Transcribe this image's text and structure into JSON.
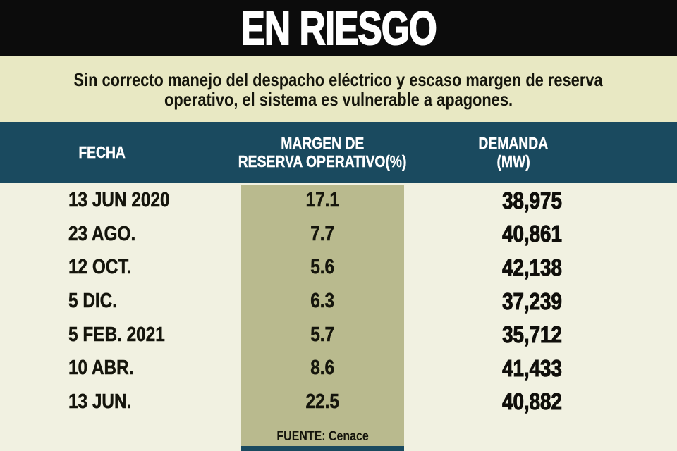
{
  "title": "EN RIESGO",
  "subtitle": {
    "line1": "Sin correcto manejo del despacho eléctrico y escaso margen de reserva",
    "line2": "operativo, el sistema es vulnerable a apagones."
  },
  "table": {
    "headers": {
      "col1": "FECHA",
      "col2_line1": "MARGEN DE",
      "col2_line2": "RESERVA OPERATIVO(%)",
      "col3_line1": "DEMANDA",
      "col3_line2": "(MW)"
    },
    "rows": [
      {
        "fecha": "13 JUN 2020",
        "margen": "17.1",
        "demanda": "38,975"
      },
      {
        "fecha": "23 AGO.",
        "margen": "7.7",
        "demanda": "40,861"
      },
      {
        "fecha": "12 OCT.",
        "margen": "5.6",
        "demanda": "42,138"
      },
      {
        "fecha": "5 DIC.",
        "margen": "6.3",
        "demanda": "37,239"
      },
      {
        "fecha": "5 FEB. 2021",
        "margen": "5.7",
        "demanda": "35,712"
      },
      {
        "fecha": "10 ABR.",
        "margen": "8.6",
        "demanda": "41,433"
      },
      {
        "fecha": "13 JUN.",
        "margen": "22.5",
        "demanda": "40,882"
      }
    ]
  },
  "source": "FUENTE: Cenace",
  "colors": {
    "title_bar_bg": "#0c0c0c",
    "title_text": "#ffffff",
    "subtitle_band_bg": "#e8e8c3",
    "header_band_bg": "#1a4a5f",
    "header_text": "#ffffff",
    "body_bg": "#f1f1e1",
    "highlight_column_bg": "#b9ba8e",
    "body_text": "#15150c",
    "bottom_bar": "#1a4a5f"
  },
  "chart_data": {
    "type": "table",
    "title": "EN RIESGO",
    "subtitle": "Sin correcto manejo del despacho eléctrico y escaso margen de reserva operativo, el sistema es vulnerable a apagones.",
    "columns": [
      "FECHA",
      "MARGEN DE RESERVA OPERATIVO(%)",
      "DEMANDA (MW)"
    ],
    "rows": [
      [
        "13 JUN 2020",
        17.1,
        38975
      ],
      [
        "23 AGO.",
        7.7,
        40861
      ],
      [
        "12 OCT.",
        5.6,
        42138
      ],
      [
        "5 DIC.",
        6.3,
        37239
      ],
      [
        "5 FEB. 2021",
        5.7,
        35712
      ],
      [
        "10 ABR.",
        8.6,
        41433
      ],
      [
        "13 JUN.",
        22.5,
        40882
      ]
    ],
    "highlighted_column": "MARGEN DE RESERVA OPERATIVO(%)",
    "source": "FUENTE: Cenace"
  }
}
